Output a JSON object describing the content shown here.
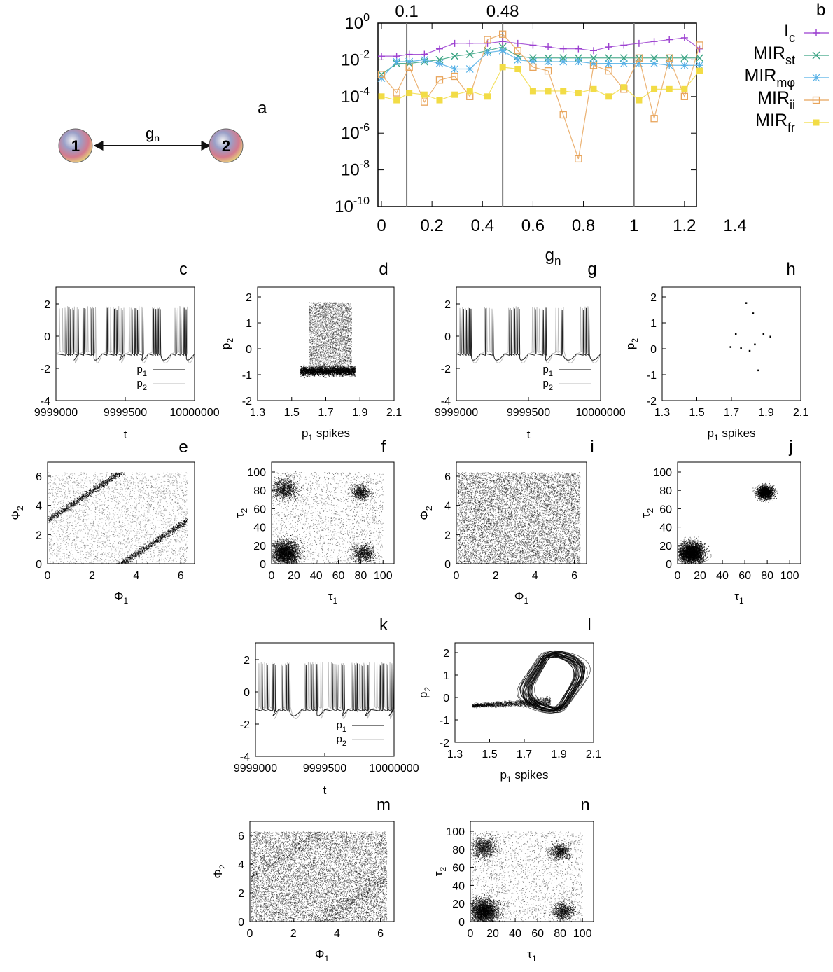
{
  "panel_a": {
    "label": "a",
    "node1": "1",
    "node2": "2",
    "edge_label": "g",
    "edge_sub": "n"
  },
  "chart_data": [
    {
      "id": "b",
      "label": "b",
      "type": "line",
      "yscale": "log",
      "xlabel": "g",
      "xlabel_sub": "n",
      "xlim": [
        0,
        1.4
      ],
      "ylim_exp": [
        -10,
        0
      ],
      "xticks": [
        "0",
        "0.2",
        "0.4",
        "0.6",
        "0.8",
        "1",
        "1.2",
        "1.4"
      ],
      "yticks": [
        {
          "base": "10",
          "exp": "0"
        },
        {
          "base": "10",
          "exp": "-2"
        },
        {
          "base": "10",
          "exp": "-4"
        },
        {
          "base": "10",
          "exp": "-6"
        },
        {
          "base": "10",
          "exp": "-8"
        },
        {
          "base": "10",
          "exp": "-10"
        }
      ],
      "vlines": [
        {
          "x": 0.1,
          "label": "0.1"
        },
        {
          "x": 0.48,
          "label": "0.48"
        },
        {
          "x": 1,
          "label": ""
        }
      ],
      "x": [
        0,
        0.06,
        0.11,
        0.17,
        0.23,
        0.29,
        0.35,
        0.42,
        0.48,
        0.54,
        0.6,
        0.66,
        0.72,
        0.78,
        0.84,
        0.9,
        0.96,
        1.02,
        1.08,
        1.14,
        1.2,
        1.26
      ],
      "series": [
        {
          "name": "I",
          "sub": "c",
          "color": "#9b3fd0",
          "marker": "plus",
          "log10": [
            -1.8,
            -1.8,
            -1.7,
            -1.7,
            -1.4,
            -1.1,
            -1.1,
            -1.1,
            -1.0,
            -1.1,
            -1.2,
            -1.3,
            -1.4,
            -1.4,
            -1.5,
            -1.3,
            -1.2,
            -1.1,
            -1.0,
            -0.9,
            -0.8,
            -1.4
          ]
        },
        {
          "name": "MIR",
          "sub": "st",
          "color": "#3aa383",
          "marker": "x",
          "log10": [
            -2.8,
            -2.2,
            -2.2,
            -2.1,
            -2.0,
            -1.8,
            -1.7,
            -1.5,
            -1.3,
            -1.8,
            -1.9,
            -1.9,
            -1.9,
            -1.9,
            -1.9,
            -1.9,
            -1.9,
            -1.9,
            -1.9,
            -1.9,
            -1.9,
            -1.9
          ]
        },
        {
          "name": "MIR",
          "sub": "mφ",
          "color": "#55b0e6",
          "marker": "star",
          "log10": [
            -3.0,
            -2.1,
            -2.1,
            -2.0,
            -2.2,
            -2.5,
            -2.5,
            -1.6,
            -1.5,
            -2.0,
            -2.1,
            -2.1,
            -2.1,
            -2.1,
            -2.2,
            -2.2,
            -2.2,
            -2.2,
            -2.2,
            -2.3,
            -2.3,
            -2.3
          ]
        },
        {
          "name": "MIR",
          "sub": "ii",
          "color": "#e8a45b",
          "marker": "square-open",
          "log10": [
            -2.8,
            -3.8,
            -2.4,
            -4.3,
            -3.1,
            -2.9,
            -4.0,
            -0.9,
            -0.6,
            -1.5,
            -2.4,
            -2.6,
            -5.0,
            -7.4,
            -2.3,
            -2.6,
            -3.6,
            -1.9,
            -5.2,
            -1.9,
            -4.0,
            -1.2
          ]
        },
        {
          "name": "MIR",
          "sub": "fr",
          "color": "#f2dc46",
          "marker": "square-filled",
          "log10": [
            -4.0,
            -4.2,
            -3.8,
            -3.9,
            -4.2,
            -3.9,
            -3.7,
            -4.0,
            -2.4,
            -2.5,
            -3.7,
            -3.7,
            -3.7,
            -3.8,
            -3.6,
            -4.0,
            -3.5,
            -4.2,
            -3.6,
            -3.6,
            -3.6,
            -2.6
          ]
        }
      ]
    },
    {
      "id": "c",
      "label": "c",
      "type": "timeseries",
      "xlabel": "t",
      "xticks": [
        "9999000",
        "9999500",
        "10000000"
      ],
      "yticks": [
        "2",
        "0",
        "-2",
        "-4"
      ],
      "xlim": [
        9999000,
        10000000
      ],
      "ylim": [
        -4,
        3
      ],
      "legend": [
        "p",
        "p"
      ],
      "legend_subs": [
        "1",
        "2"
      ],
      "seed": 11
    },
    {
      "id": "d",
      "label": "d",
      "type": "scatter",
      "xlabel": "p",
      "xlabel_sub": "1",
      "xlabel_suffix": " spikes",
      "ylabel": "p",
      "ylabel_sub": "2",
      "xticks": [
        "1.3",
        "1.5",
        "1.7",
        "1.9",
        "2.1"
      ],
      "yticks": [
        "2",
        "1",
        "0",
        "-1",
        "-2"
      ],
      "xlim": [
        1.3,
        2.1
      ],
      "ylim": [
        -2,
        2.4
      ],
      "style": "dense-block",
      "seed": 12
    },
    {
      "id": "e",
      "label": "e",
      "type": "scatter",
      "xlabel": "Φ",
      "xlabel_sub": "1",
      "ylabel": "Φ",
      "ylabel_sub": "2",
      "xticks": [
        "0",
        "2",
        "4",
        "6"
      ],
      "yticks": [
        "6",
        "4",
        "2",
        "0"
      ],
      "xlim": [
        0,
        7
      ],
      "ylim": [
        0,
        7
      ],
      "style": "phase-bands",
      "seed": 13
    },
    {
      "id": "f",
      "label": "f",
      "type": "scatter",
      "xlabel": "τ",
      "xlabel_sub": "1",
      "ylabel": "τ",
      "ylabel_sub": "2",
      "xticks": [
        "0",
        "20",
        "40",
        "60",
        "80",
        "100"
      ],
      "yticks": [
        "100",
        "80",
        "60",
        "40",
        "20",
        "0"
      ],
      "xlim": [
        0,
        110
      ],
      "ylim": [
        0,
        110
      ],
      "style": "four-clusters",
      "seed": 14
    },
    {
      "id": "g",
      "label": "g",
      "type": "timeseries",
      "xlabel": "t",
      "xticks": [
        "9999000",
        "9999500",
        "10000000"
      ],
      "yticks": [
        "2",
        "0",
        "-2",
        "-4"
      ],
      "xlim": [
        9999000,
        10000000
      ],
      "ylim": [
        -4,
        3
      ],
      "legend": [
        "p",
        "p"
      ],
      "legend_subs": [
        "1",
        "2"
      ],
      "seed": 21
    },
    {
      "id": "h",
      "label": "h",
      "type": "scatter",
      "xlabel": "p",
      "xlabel_sub": "1",
      "xlabel_suffix": " spikes",
      "ylabel": "p",
      "ylabel_sub": "2",
      "xticks": [
        "1.3",
        "1.5",
        "1.7",
        "1.9",
        "2.1"
      ],
      "yticks": [
        "2",
        "1",
        "0",
        "-1",
        "-2"
      ],
      "xlim": [
        1.3,
        2.1
      ],
      "ylim": [
        -2,
        2.4
      ],
      "style": "sparse-points",
      "seed": 22
    },
    {
      "id": "i",
      "label": "i",
      "type": "scatter",
      "xlabel": "Φ",
      "xlabel_sub": "1",
      "ylabel": "Φ",
      "ylabel_sub": "2",
      "xticks": [
        "0",
        "2",
        "4",
        "6"
      ],
      "yticks": [
        "6",
        "4",
        "2",
        "0"
      ],
      "xlim": [
        0,
        7
      ],
      "ylim": [
        0,
        7
      ],
      "style": "phase-uniform",
      "seed": 23
    },
    {
      "id": "j",
      "label": "j",
      "type": "scatter",
      "xlabel": "τ",
      "xlabel_sub": "1",
      "ylabel": "τ",
      "ylabel_sub": "2",
      "xticks": [
        "0",
        "20",
        "40",
        "60",
        "80",
        "100"
      ],
      "yticks": [
        "100",
        "80",
        "60",
        "40",
        "20",
        "0"
      ],
      "xlim": [
        0,
        110
      ],
      "ylim": [
        0,
        110
      ],
      "style": "two-clusters",
      "seed": 24
    },
    {
      "id": "k",
      "label": "k",
      "type": "timeseries",
      "xlabel": "t",
      "xticks": [
        "9999000",
        "9999500",
        "10000000"
      ],
      "yticks": [
        "2",
        "0",
        "-2",
        "-4"
      ],
      "xlim": [
        9999000,
        10000000
      ],
      "ylim": [
        -4,
        3
      ],
      "legend": [
        "p",
        "p"
      ],
      "legend_subs": [
        "1",
        "2"
      ],
      "seed": 31
    },
    {
      "id": "l",
      "label": "l",
      "type": "scatter",
      "xlabel": "p",
      "xlabel_sub": "1",
      "xlabel_suffix": " spikes",
      "ylabel": "p",
      "ylabel_sub": "2",
      "xticks": [
        "1.3",
        "1.5",
        "1.7",
        "1.9",
        "2.1"
      ],
      "yticks": [
        "2",
        "1",
        "0",
        "-1",
        "-2"
      ],
      "xlim": [
        1.3,
        2.1
      ],
      "ylim": [
        -2,
        2.4
      ],
      "style": "attractor-loops",
      "seed": 32
    },
    {
      "id": "m",
      "label": "m",
      "type": "scatter",
      "xlabel": "Φ",
      "xlabel_sub": "1",
      "ylabel": "Φ",
      "ylabel_sub": "2",
      "xticks": [
        "0",
        "2",
        "4",
        "6"
      ],
      "yticks": [
        "6",
        "4",
        "2",
        "0"
      ],
      "xlim": [
        0,
        7
      ],
      "ylim": [
        0,
        7
      ],
      "style": "phase-weak-bands",
      "seed": 33
    },
    {
      "id": "n",
      "label": "n",
      "type": "scatter",
      "xlabel": "τ",
      "xlabel_sub": "1",
      "ylabel": "τ",
      "ylabel_sub": "2",
      "xticks": [
        "0",
        "20",
        "40",
        "60",
        "80",
        "100"
      ],
      "yticks": [
        "100",
        "80",
        "60",
        "40",
        "20",
        "0"
      ],
      "xlim": [
        0,
        110
      ],
      "ylim": [
        0,
        110
      ],
      "style": "four-clusters",
      "seed": 34
    }
  ]
}
